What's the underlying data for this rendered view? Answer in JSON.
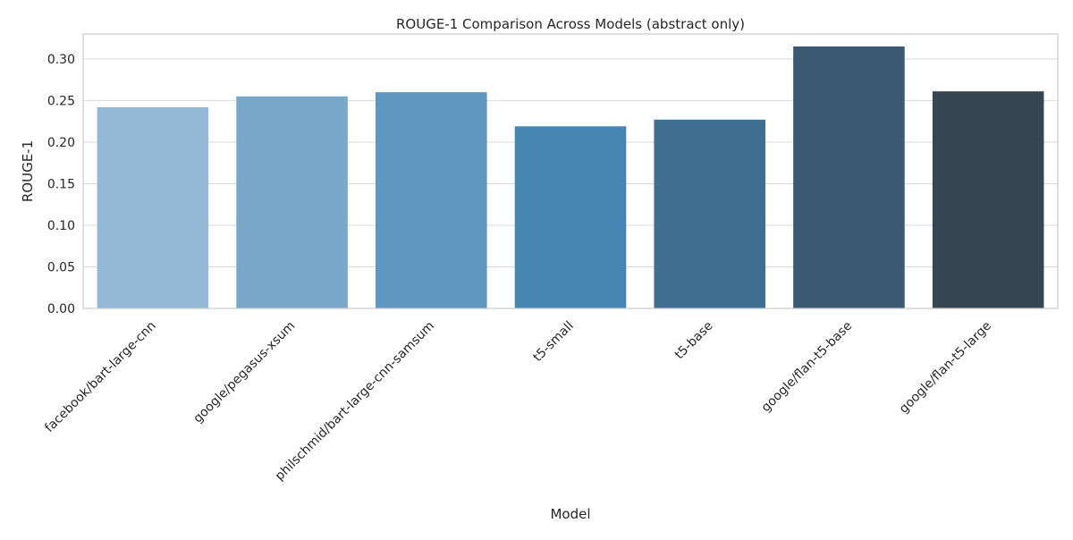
{
  "chart_data": {
    "type": "bar",
    "title": "ROUGE-1 Comparison Across Models (abstract only)",
    "xlabel": "Model",
    "ylabel": "ROUGE-1",
    "ylim": [
      0,
      0.33
    ],
    "yticks": [
      "0.00",
      "0.05",
      "0.10",
      "0.15",
      "0.20",
      "0.25",
      "0.30"
    ],
    "grid": "horizontal",
    "categories": [
      "facebook/bart-large-cnn",
      "google/pegasus-xsum",
      "philschmid/bart-large-cnn-samsum",
      "t5-small",
      "t5-base",
      "google/flan-t5-base",
      "google/flan-t5-large"
    ],
    "values": [
      0.242,
      0.255,
      0.26,
      0.219,
      0.227,
      0.315,
      0.261
    ],
    "colors": [
      "#94b9d6",
      "#7aa8c9",
      "#5e97bf",
      "#4785b3",
      "#3f6f91",
      "#3a5a73",
      "#364653"
    ]
  }
}
